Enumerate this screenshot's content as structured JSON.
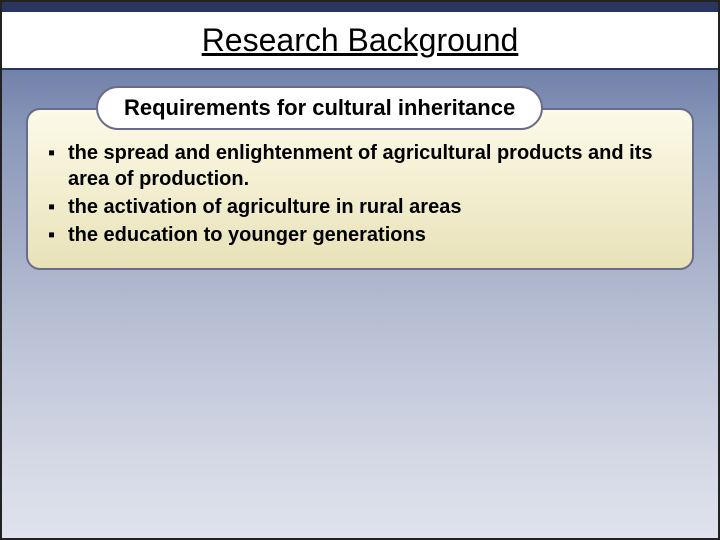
{
  "slide": {
    "title": "Research Background",
    "subtitle": "Requirements for cultural inheritance",
    "bullets": [
      "the spread and enlightenment of agricultural  products and its area of production.",
      "the activation of agriculture in rural areas",
      "the education to younger generations"
    ]
  },
  "styling": {
    "title_fontsize": 32,
    "title_underline": true,
    "title_bar_bg": "#ffffff",
    "title_bar_top_border": "#2a3560",
    "subtitle_fontsize": 22,
    "subtitle_pill_bg": "#ffffff",
    "subtitle_pill_border": "#6a6a8a",
    "body_fontsize": 20,
    "body_fontweight": "bold",
    "panel_gradient_top": "#fcfae8",
    "panel_gradient_bottom": "#e8e2b8",
    "panel_border": "#6a6a8a",
    "panel_border_radius": 14,
    "slide_bg_gradient_top": "#5a6a9a",
    "slide_bg_gradient_bottom": "#e0e3ed",
    "bullet_marker": "▪",
    "text_color": "#000000"
  }
}
